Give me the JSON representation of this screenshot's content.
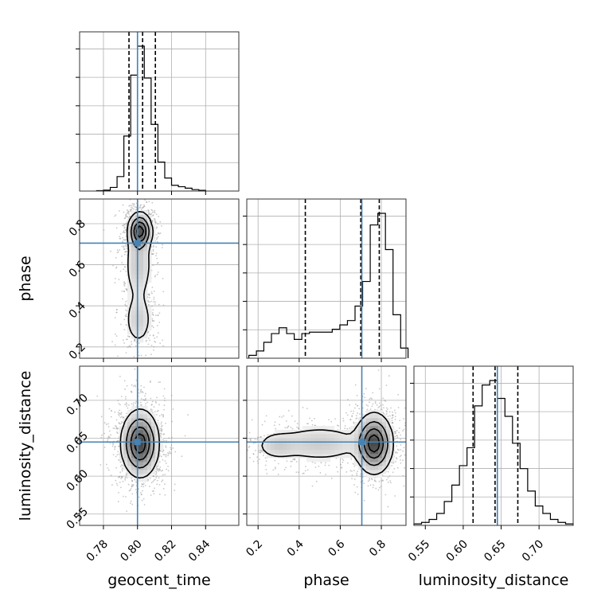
{
  "chart_data": {
    "type": "corner",
    "parameters": [
      {
        "name": "geocent_time",
        "label": "geocent_time",
        "range": [
          0.766,
          0.8595
        ],
        "ticks": [
          0.78,
          0.8,
          0.82,
          0.84
        ],
        "tick_labels": [
          "0.78",
          "0.80",
          "0.82",
          "0.84"
        ],
        "injection": 0.8,
        "quantiles": [
          0.795,
          0.803,
          0.8105
        ],
        "histogram": {
          "bin_edges": [
            0.776,
            0.78,
            0.784,
            0.788,
            0.792,
            0.796,
            0.8,
            0.804,
            0.808,
            0.812,
            0.816,
            0.82,
            0.824,
            0.828,
            0.832,
            0.836,
            0.84
          ],
          "counts": [
            0.3,
            0.6,
            2.5,
            10.0,
            38,
            80,
            100,
            78,
            46,
            20,
            9,
            4,
            3,
            2,
            1,
            0.5
          ]
        }
      },
      {
        "name": "phase",
        "label": "phase",
        "range": [
          0.145,
          0.92
        ],
        "ticks": [
          0.2,
          0.4,
          0.6,
          0.8
        ],
        "tick_labels": [
          "0.2",
          "0.4",
          "0.6",
          "0.8"
        ],
        "injection": 0.705,
        "quantiles": [
          0.43,
          0.7,
          0.79
        ],
        "histogram": {
          "bin_edges": [
            0.155,
            0.192,
            0.228,
            0.265,
            0.302,
            0.339,
            0.376,
            0.413,
            0.45,
            0.487,
            0.524,
            0.561,
            0.598,
            0.635,
            0.672,
            0.709,
            0.746,
            0.783,
            0.82,
            0.857,
            0.894,
            0.93
          ],
          "counts": [
            2,
            5,
            11,
            17,
            21,
            17,
            13,
            17,
            18,
            18,
            18,
            20,
            23,
            26,
            36,
            53,
            92,
            100,
            75,
            30,
            7
          ]
        }
      },
      {
        "name": "luminosity_distance",
        "label": "luminosity_distance",
        "range": [
          0.535,
          0.745
        ],
        "ticks": [
          0.55,
          0.6,
          0.65,
          0.7
        ],
        "tick_labels": [
          "0.55",
          "0.60",
          "0.65",
          "0.70"
        ],
        "injection": 0.645,
        "quantiles": [
          0.613,
          0.642,
          0.672
        ],
        "histogram": {
          "bin_edges": [
            0.535,
            0.545,
            0.555,
            0.565,
            0.575,
            0.585,
            0.595,
            0.605,
            0.615,
            0.625,
            0.635,
            0.645,
            0.655,
            0.665,
            0.675,
            0.685,
            0.695,
            0.705,
            0.715,
            0.725,
            0.735,
            0.745
          ],
          "counts": [
            1,
            2,
            4,
            8,
            16,
            27,
            40,
            52,
            80,
            94,
            97,
            85,
            73,
            55,
            38,
            23,
            13,
            8,
            4,
            2,
            1
          ]
        }
      }
    ],
    "pairs": [
      {
        "x": "geocent_time",
        "y": "phase",
        "blobs": [
          {
            "x": 0.8015,
            "y": 0.765,
            "sx": 0.0035,
            "sy": 0.045,
            "w": 1.0
          },
          {
            "x": 0.8005,
            "y": 0.6,
            "sx": 0.0045,
            "sy": 0.1,
            "w": 0.32
          },
          {
            "x": 0.8005,
            "y": 0.33,
            "sx": 0.0045,
            "sy": 0.07,
            "w": 0.28
          }
        ]
      },
      {
        "x": "geocent_time",
        "y": "luminosity_distance",
        "blobs": [
          {
            "x": 0.8015,
            "y": 0.643,
            "sx": 0.0055,
            "sy": 0.022,
            "w": 1.0
          }
        ]
      },
      {
        "x": "phase",
        "y": "luminosity_distance",
        "blobs": [
          {
            "x": 0.765,
            "y": 0.643,
            "sx": 0.045,
            "sy": 0.02,
            "w": 1.0
          },
          {
            "x": 0.5,
            "y": 0.643,
            "sx": 0.13,
            "sy": 0.014,
            "w": 0.28
          },
          {
            "x": 0.29,
            "y": 0.64,
            "sx": 0.055,
            "sy": 0.01,
            "w": 0.22
          }
        ]
      }
    ],
    "colors": {
      "injection": "#4682b4",
      "histogram": "#000000",
      "quantile": "#000000",
      "grid": "#b0b0b0",
      "samples": "#9a9a9a"
    },
    "grid": true,
    "legend": "none"
  }
}
